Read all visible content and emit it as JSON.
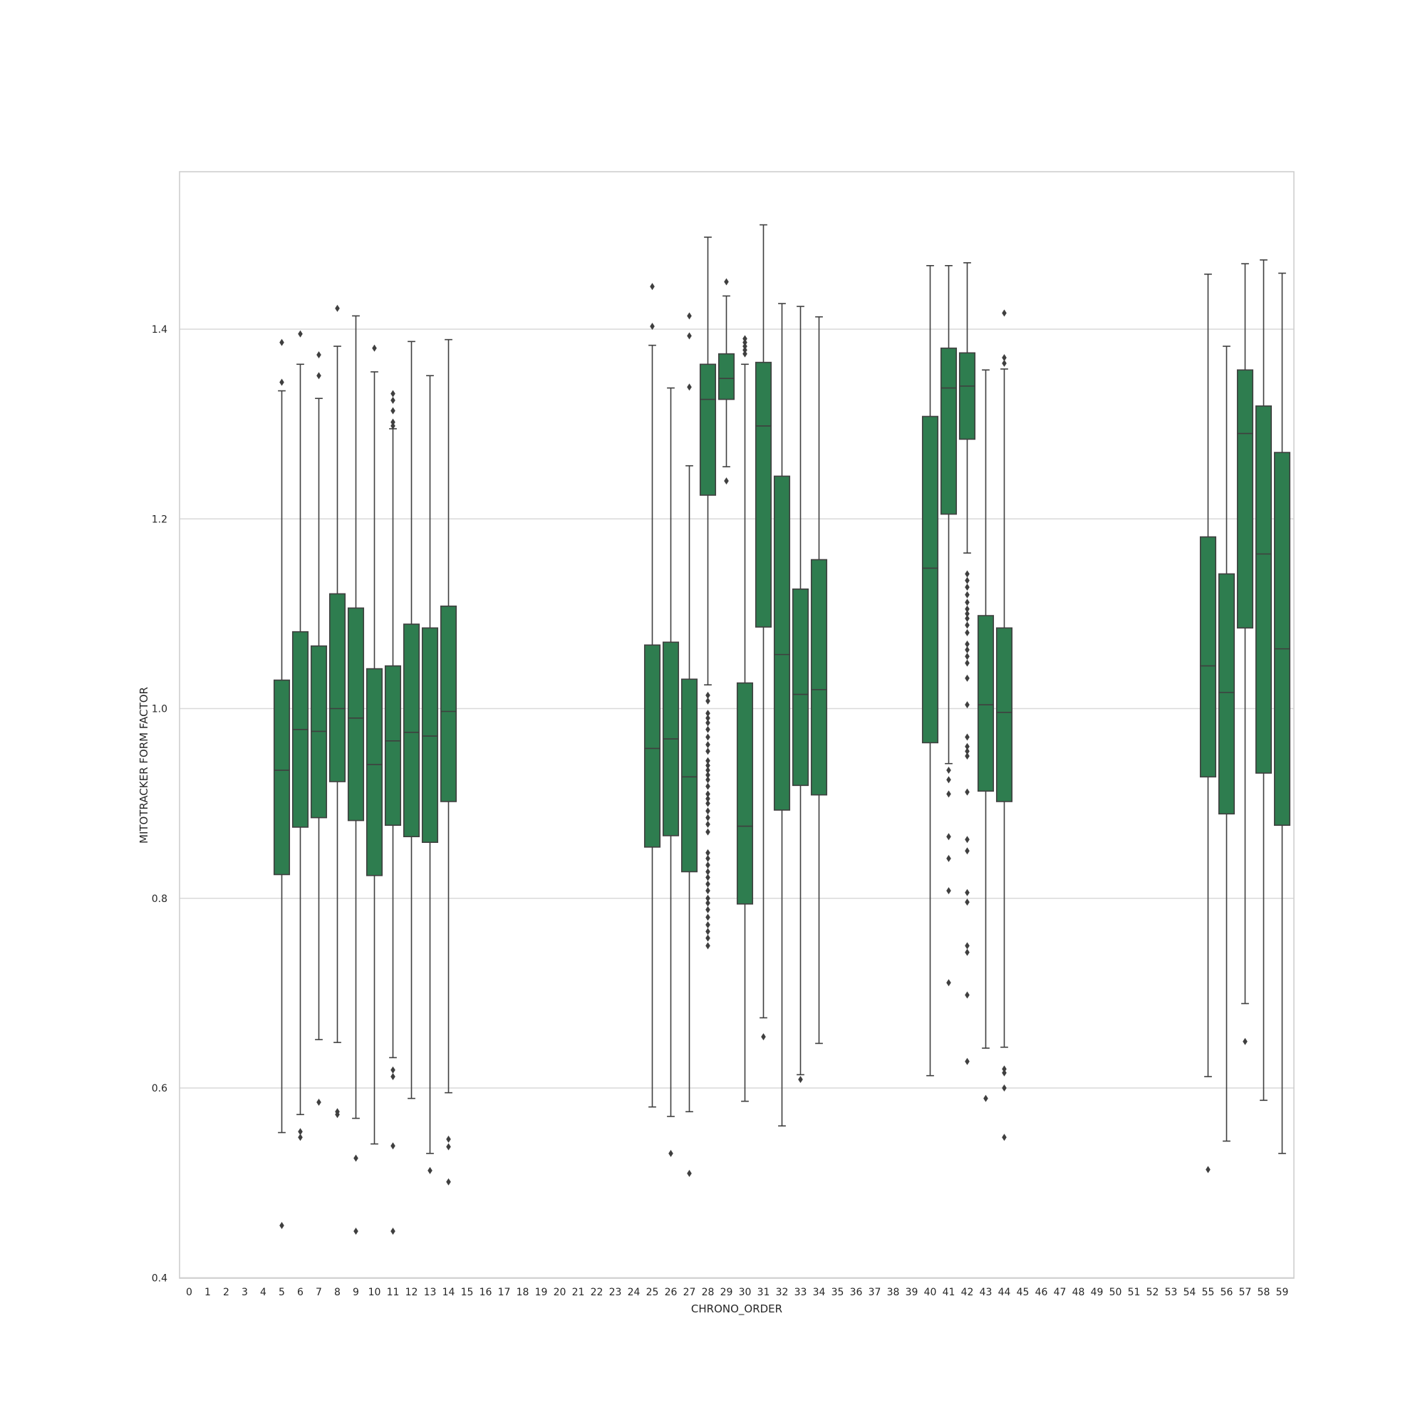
{
  "chart_data": {
    "type": "box",
    "xlabel": "CHRONO_ORDER",
    "ylabel": "MITOTRACKER FORM FACTOR",
    "ylim": [
      0.4,
      1.565
    ],
    "yticks": [
      0.4,
      0.6,
      0.8,
      1.0,
      1.2,
      1.4
    ],
    "ytick_labels": [
      "0.4",
      "0.6",
      "0.8",
      "1.0",
      "1.2",
      "1.4"
    ],
    "categories": [
      "0",
      "1",
      "2",
      "3",
      "4",
      "5",
      "6",
      "7",
      "8",
      "9",
      "10",
      "11",
      "12",
      "13",
      "14",
      "15",
      "16",
      "17",
      "18",
      "19",
      "20",
      "21",
      "22",
      "23",
      "24",
      "25",
      "26",
      "27",
      "28",
      "29",
      "30",
      "31",
      "32",
      "33",
      "34",
      "35",
      "36",
      "37",
      "38",
      "39",
      "40",
      "41",
      "42",
      "43",
      "44",
      "45",
      "46",
      "47",
      "48",
      "49",
      "50",
      "51",
      "52",
      "53",
      "54",
      "55",
      "56",
      "57",
      "58",
      "59"
    ],
    "grid": "y",
    "box_color": "#2e7d4f",
    "boxes": [
      {
        "category": "5",
        "whislo": 0.553,
        "q1": 0.825,
        "med": 0.935,
        "q3": 1.03,
        "whishi": 1.335,
        "fliers": [
          1.386,
          1.344,
          0.455
        ]
      },
      {
        "category": "6",
        "whislo": 0.572,
        "q1": 0.875,
        "med": 0.978,
        "q3": 1.081,
        "whishi": 1.363,
        "fliers": [
          1.395,
          0.554,
          0.548
        ]
      },
      {
        "category": "7",
        "whislo": 0.651,
        "q1": 0.885,
        "med": 0.976,
        "q3": 1.066,
        "whishi": 1.327,
        "fliers": [
          1.373,
          1.351,
          0.585
        ]
      },
      {
        "category": "8",
        "whislo": 0.648,
        "q1": 0.923,
        "med": 1.0,
        "q3": 1.121,
        "whishi": 1.382,
        "fliers": [
          1.422,
          0.575,
          0.572
        ]
      },
      {
        "category": "9",
        "whislo": 0.568,
        "q1": 0.882,
        "med": 0.99,
        "q3": 1.106,
        "whishi": 1.414,
        "fliers": [
          0.526,
          0.449
        ]
      },
      {
        "category": "10",
        "whislo": 0.541,
        "q1": 0.824,
        "med": 0.941,
        "q3": 1.042,
        "whishi": 1.355,
        "fliers": [
          1.38
        ]
      },
      {
        "category": "11",
        "whislo": 0.632,
        "q1": 0.877,
        "med": 0.966,
        "q3": 1.045,
        "whishi": 1.295,
        "fliers": [
          1.332,
          1.325,
          1.314,
          1.302,
          1.298,
          0.619,
          0.612,
          0.539,
          0.449
        ]
      },
      {
        "category": "12",
        "whislo": 0.589,
        "q1": 0.865,
        "med": 0.975,
        "q3": 1.089,
        "whishi": 1.387,
        "fliers": []
      },
      {
        "category": "13",
        "whislo": 0.531,
        "q1": 0.859,
        "med": 0.971,
        "q3": 1.085,
        "whishi": 1.351,
        "fliers": [
          0.513
        ]
      },
      {
        "category": "14",
        "whislo": 0.595,
        "q1": 0.902,
        "med": 0.997,
        "q3": 1.108,
        "whishi": 1.389,
        "fliers": [
          0.546,
          0.538,
          0.501
        ]
      },
      {
        "category": "25",
        "whislo": 0.58,
        "q1": 0.854,
        "med": 0.958,
        "q3": 1.067,
        "whishi": 1.383,
        "fliers": [
          1.445,
          1.403
        ]
      },
      {
        "category": "26",
        "whislo": 0.57,
        "q1": 0.866,
        "med": 0.968,
        "q3": 1.07,
        "whishi": 1.338,
        "fliers": [
          0.531
        ]
      },
      {
        "category": "27",
        "whislo": 0.575,
        "q1": 0.828,
        "med": 0.928,
        "q3": 1.031,
        "whishi": 1.256,
        "fliers": [
          1.414,
          1.393,
          1.339,
          0.51
        ]
      },
      {
        "category": "28",
        "whislo": 1.025,
        "q1": 1.225,
        "med": 1.326,
        "q3": 1.363,
        "whishi": 1.497,
        "fliers": [
          1.014,
          1.008,
          0.995,
          0.99,
          0.985,
          0.978,
          0.97,
          0.962,
          0.955,
          0.945,
          0.94,
          0.935,
          0.93,
          0.925,
          0.918,
          0.91,
          0.905,
          0.9,
          0.892,
          0.885,
          0.878,
          0.87,
          0.848,
          0.842,
          0.835,
          0.828,
          0.822,
          0.815,
          0.808,
          0.8,
          0.795,
          0.788,
          0.78,
          0.772,
          0.765,
          0.758,
          0.75
        ]
      },
      {
        "category": "29",
        "whislo": 1.255,
        "q1": 1.326,
        "med": 1.348,
        "q3": 1.374,
        "whishi": 1.435,
        "fliers": [
          1.45,
          1.24
        ]
      },
      {
        "category": "30",
        "whislo": 0.586,
        "q1": 0.794,
        "med": 0.876,
        "q3": 1.027,
        "whishi": 1.363,
        "fliers": [
          1.39,
          1.386,
          1.382,
          1.378,
          1.374
        ]
      },
      {
        "category": "31",
        "whislo": 0.674,
        "q1": 1.086,
        "med": 1.298,
        "q3": 1.365,
        "whishi": 1.51,
        "fliers": [
          0.654
        ]
      },
      {
        "category": "32",
        "whislo": 0.56,
        "q1": 0.893,
        "med": 1.057,
        "q3": 1.245,
        "whishi": 1.427,
        "fliers": []
      },
      {
        "category": "33",
        "whislo": 0.614,
        "q1": 0.919,
        "med": 1.015,
        "q3": 1.126,
        "whishi": 1.424,
        "fliers": [
          0.609
        ]
      },
      {
        "category": "34",
        "whislo": 0.647,
        "q1": 0.909,
        "med": 1.02,
        "q3": 1.157,
        "whishi": 1.413,
        "fliers": []
      },
      {
        "category": "40",
        "whislo": 0.613,
        "q1": 0.964,
        "med": 1.148,
        "q3": 1.308,
        "whishi": 1.467,
        "fliers": []
      },
      {
        "category": "41",
        "whislo": 0.942,
        "q1": 1.205,
        "med": 1.338,
        "q3": 1.38,
        "whishi": 1.467,
        "fliers": [
          0.935,
          0.925,
          0.91,
          0.865,
          0.842,
          0.808,
          0.711
        ]
      },
      {
        "category": "42",
        "whislo": 1.164,
        "q1": 1.284,
        "med": 1.34,
        "q3": 1.375,
        "whishi": 1.47,
        "fliers": [
          1.142,
          1.135,
          1.128,
          1.12,
          1.112,
          1.105,
          1.1,
          1.095,
          1.088,
          1.08,
          1.068,
          1.062,
          1.055,
          1.048,
          1.032,
          1.004,
          0.97,
          0.96,
          0.955,
          0.95,
          0.912,
          0.862,
          0.85,
          0.806,
          0.796,
          0.75,
          0.743,
          0.698,
          0.628
        ]
      },
      {
        "category": "43",
        "whislo": 0.642,
        "q1": 0.913,
        "med": 1.004,
        "q3": 1.098,
        "whishi": 1.357,
        "fliers": [
          0.589
        ]
      },
      {
        "category": "44",
        "whislo": 0.643,
        "q1": 0.902,
        "med": 0.996,
        "q3": 1.085,
        "whishi": 1.358,
        "fliers": [
          1.417,
          1.37,
          1.364,
          0.62,
          0.616,
          0.6,
          0.548
        ]
      },
      {
        "category": "55",
        "whislo": 0.612,
        "q1": 0.928,
        "med": 1.045,
        "q3": 1.181,
        "whishi": 1.458,
        "fliers": [
          0.514
        ]
      },
      {
        "category": "56",
        "whislo": 0.544,
        "q1": 0.889,
        "med": 1.017,
        "q3": 1.142,
        "whishi": 1.382,
        "fliers": []
      },
      {
        "category": "57",
        "whislo": 0.689,
        "q1": 1.085,
        "med": 1.29,
        "q3": 1.357,
        "whishi": 1.469,
        "fliers": [
          0.649
        ]
      },
      {
        "category": "58",
        "whislo": 0.587,
        "q1": 0.932,
        "med": 1.163,
        "q3": 1.319,
        "whishi": 1.473,
        "fliers": []
      },
      {
        "category": "59",
        "whislo": 0.531,
        "q1": 0.877,
        "med": 1.063,
        "q3": 1.27,
        "whishi": 1.459,
        "fliers": []
      }
    ]
  }
}
